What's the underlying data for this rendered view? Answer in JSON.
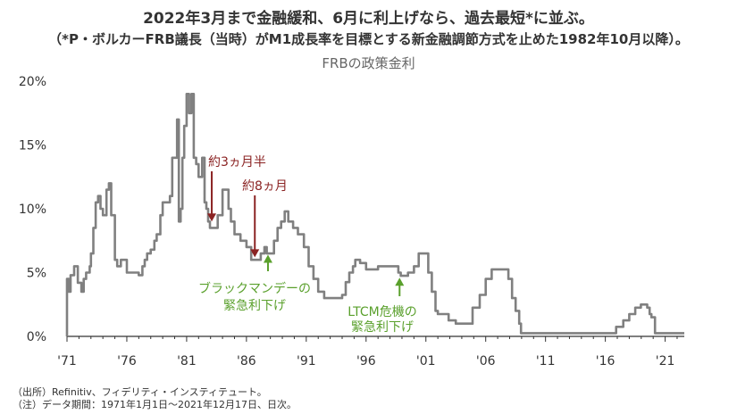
{
  "header": {
    "title": "2022年3月まで金融緩和、6月に利上げなら、過去最短*に並ぶ。",
    "subtitle": "（*P・ボルカーFRB議長（当時）がM1成長率を目標とする新金融調節方式を止めた1982年10月以降）。"
  },
  "footnotes": {
    "source": "（出所）Refinitiv、フィデリティ・インスティテュート。",
    "note": "（注）データ期間：1971年1月1日～2021年12月17日、日次。"
  },
  "colors": {
    "line": "#808080",
    "red_annotation": "#8b2323",
    "green_annotation": "#5aa02c",
    "axis": "#333333"
  },
  "chart_data": {
    "type": "line",
    "title": "FRBの政策金利",
    "xlim": [
      1971,
      2022.6
    ],
    "ylim": [
      0,
      20
    ],
    "y_ticks": [
      0,
      5,
      10,
      15,
      20
    ],
    "y_tick_labels": [
      "0%",
      "5%",
      "10%",
      "15%",
      "20%"
    ],
    "x_ticks": [
      1971,
      1976,
      1981,
      1986,
      1991,
      1996,
      2001,
      2006,
      2011,
      2016,
      2021
    ],
    "x_tick_labels": [
      "'71",
      "'76",
      "'81",
      "'86",
      "'91",
      "'96",
      "'01",
      "'06",
      "'11",
      "'16",
      "'21"
    ],
    "series": [
      {
        "x": [
          1971.0,
          1971.15,
          1971.3,
          1971.6,
          1971.9,
          1972.2,
          1972.4,
          1972.6,
          1972.9,
          1973.0,
          1973.2,
          1973.4,
          1973.6,
          1973.8,
          1974.0,
          1974.3,
          1974.5,
          1974.7,
          1975.0,
          1975.2,
          1975.5,
          1976.0,
          1976.5,
          1977.0,
          1977.3,
          1977.5,
          1977.7,
          1978.0,
          1978.3,
          1978.5,
          1978.8,
          1979.0,
          1979.3,
          1979.6,
          1979.8,
          1980.0,
          1980.2,
          1980.35,
          1980.5,
          1980.65,
          1980.8,
          1981.0,
          1981.2,
          1981.4,
          1981.6,
          1981.8,
          1982.0,
          1982.3,
          1982.5,
          1982.65,
          1982.8,
          1982.95,
          1983.2,
          1983.6,
          1984.0,
          1984.2,
          1984.5,
          1984.7,
          1985.0,
          1985.5,
          1986.0,
          1986.4,
          1986.8,
          1987.2,
          1987.5,
          1987.7,
          1988.0,
          1988.3,
          1988.6,
          1988.9,
          1989.2,
          1989.5,
          1989.9,
          1990.3,
          1990.8,
          1991.2,
          1991.6,
          1992.0,
          1992.5,
          1993.0,
          1994.0,
          1994.3,
          1994.6,
          1994.9,
          1995.1,
          1995.5,
          1996.0,
          1997.0,
          1998.0,
          1998.7,
          1998.9,
          1999.5,
          2000.0,
          2000.4,
          2000.9,
          2001.2,
          2001.5,
          2001.8,
          2002.0,
          2002.9,
          2003.5,
          2004.4,
          2004.9,
          2005.5,
          2006.0,
          2006.5,
          2007.6,
          2007.9,
          2008.2,
          2008.5,
          2008.8,
          2008.95,
          2009.0,
          2015.9,
          2016.9,
          2017.5,
          2018.0,
          2018.5,
          2018.97,
          2019.5,
          2019.7,
          2019.85,
          2020.15,
          2020.25,
          2022.6
        ],
        "y": [
          4.5,
          3.5,
          4.8,
          5.5,
          4.2,
          3.5,
          4.5,
          5.0,
          5.5,
          6.5,
          8.5,
          10.5,
          11.0,
          10.0,
          9.5,
          11.5,
          12.0,
          9.5,
          6.0,
          5.5,
          6.0,
          5.0,
          5.0,
          4.8,
          5.5,
          6.0,
          6.5,
          6.8,
          7.5,
          8.0,
          9.5,
          10.5,
          10.5,
          11.0,
          14.0,
          14.0,
          17.0,
          9.0,
          10.0,
          14.0,
          16.5,
          19.0,
          17.5,
          19.0,
          14.0,
          13.5,
          12.5,
          14.0,
          10.5,
          10.0,
          9.0,
          8.5,
          8.5,
          9.5,
          11.5,
          11.5,
          10.0,
          9.0,
          8.0,
          7.5,
          7.0,
          6.0,
          6.0,
          6.5,
          7.0,
          6.5,
          6.5,
          7.5,
          8.5,
          9.0,
          9.8,
          9.0,
          8.5,
          8.0,
          7.0,
          5.5,
          4.5,
          3.5,
          3.0,
          3.0,
          3.25,
          4.25,
          5.0,
          5.5,
          6.0,
          5.75,
          5.25,
          5.5,
          5.5,
          5.0,
          4.75,
          5.0,
          5.5,
          6.5,
          6.5,
          5.0,
          3.5,
          2.0,
          1.75,
          1.25,
          1.0,
          1.0,
          2.25,
          3.25,
          4.5,
          5.25,
          5.25,
          4.5,
          3.0,
          2.0,
          1.0,
          0.25,
          0.25,
          0.25,
          0.75,
          1.25,
          1.75,
          2.25,
          2.5,
          2.25,
          1.75,
          1.5,
          0.25,
          0.25,
          0.25
        ]
      }
    ],
    "annotations": [
      {
        "label": "約3ヵ月半",
        "color": "red",
        "x": 1983.1,
        "y": 9.0
      },
      {
        "label": "約8ヵ月",
        "color": "red",
        "x": 1986.7,
        "y": 6.2
      },
      {
        "label_lines": [
          "ブラックマンデーの",
          "緊急利下げ"
        ],
        "color": "green",
        "x": 1987.8,
        "y": 6.4
      },
      {
        "label_lines": [
          "LTCM危機の",
          "緊急利下げ"
        ],
        "color": "green",
        "x": 1998.8,
        "y": 4.6
      }
    ]
  }
}
